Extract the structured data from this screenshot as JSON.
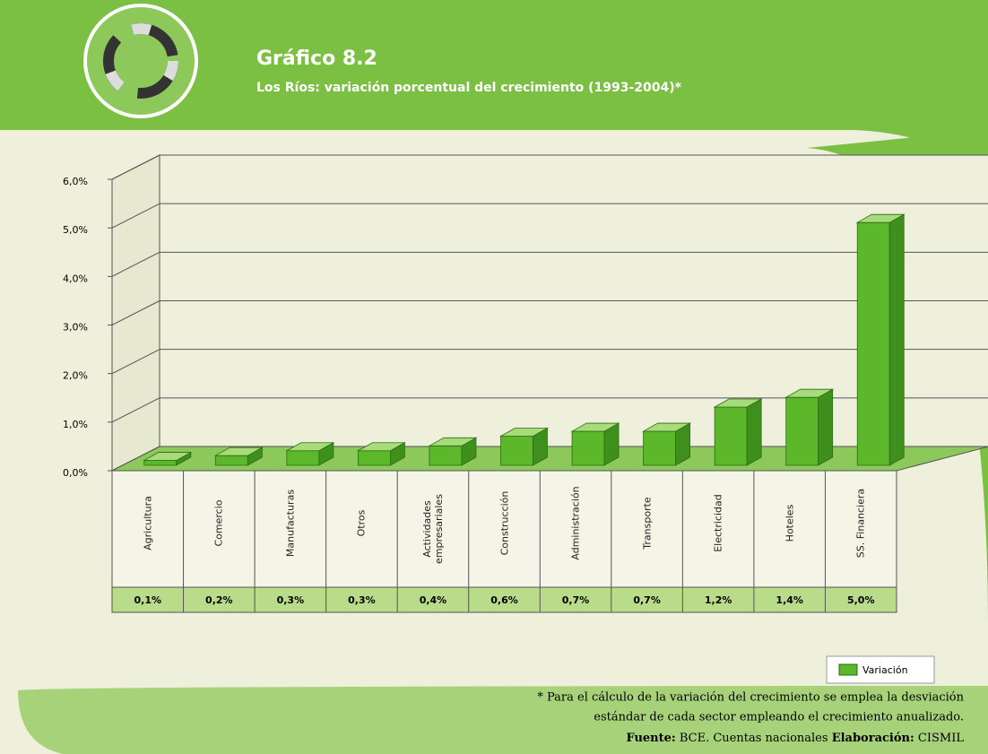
{
  "chart_data": {
    "type": "bar3d",
    "title": "Gráfico 8.2",
    "subtitle": "Los Ríos: variación porcentual del crecimiento (1993-2004)*",
    "categories": [
      "Agricultura",
      "Comercio",
      "Manufacturas",
      "Otros",
      "Actividades empresariales",
      "Construcción",
      "Administración",
      "Transporte",
      "Electricidad",
      "Hoteles",
      "SS. Financiera"
    ],
    "series": [
      {
        "name": "Variación",
        "color": "#5cb82a",
        "values": [
          0.1,
          0.2,
          0.3,
          0.3,
          0.4,
          0.6,
          0.7,
          0.7,
          1.2,
          1.4,
          5.0
        ],
        "value_labels": [
          "0,1%",
          "0,2%",
          "0,3%",
          "0,3%",
          "0,4%",
          "0,6%",
          "0,7%",
          "0,7%",
          "1,2%",
          "1,4%",
          "5,0%"
        ]
      }
    ],
    "ylim": [
      0,
      6
    ],
    "yticks": [
      {
        "value": 0,
        "label": "0,0%"
      },
      {
        "value": 1,
        "label": "1,0%"
      },
      {
        "value": 2,
        "label": "2,0%"
      },
      {
        "value": 3,
        "label": "3,0%"
      },
      {
        "value": 4,
        "label": "4,0%"
      },
      {
        "value": 5,
        "label": "5,0%"
      },
      {
        "value": 6,
        "label": "6,0%"
      }
    ],
    "grid": true,
    "legend": "bottom-right",
    "footnote": [
      "* Para el cálculo de la variación del crecimiento se emplea la desviación",
      "estándar de cada sector empleando el crecimiento anualizado."
    ],
    "source_label": "Fuente:",
    "source": "BCE. Cuentas nacionales",
    "credit_label": "Elaboración:",
    "credit": "CISMIL"
  }
}
